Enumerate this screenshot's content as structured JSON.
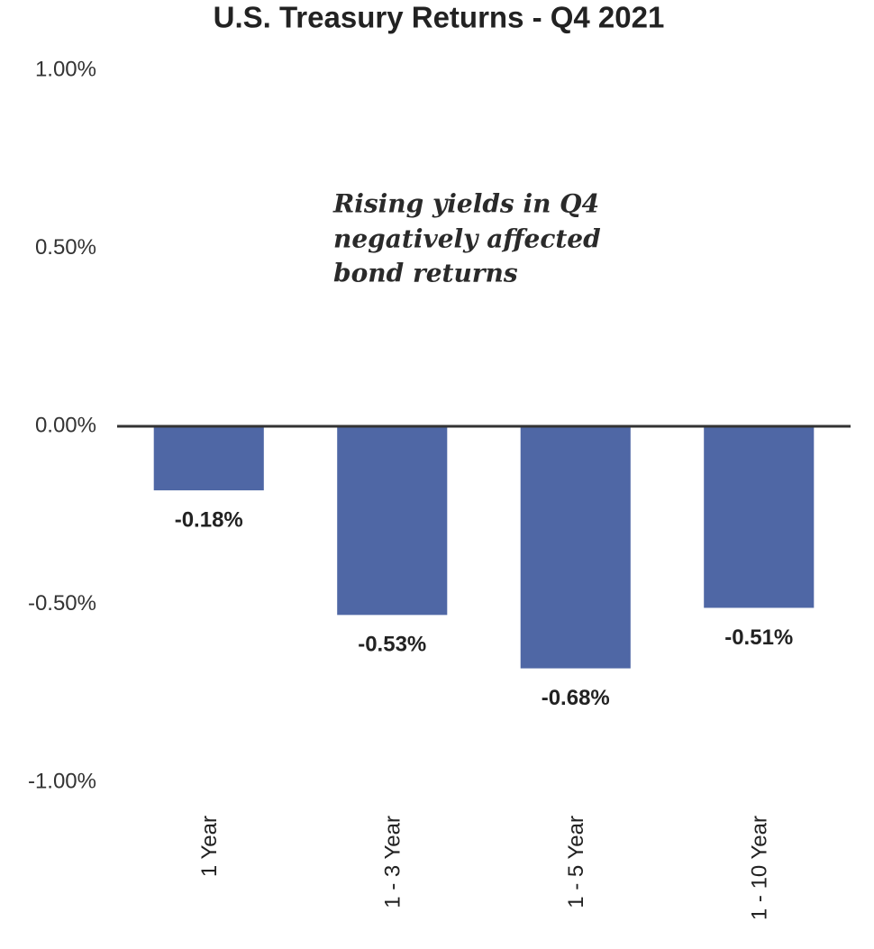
{
  "chart_data": {
    "type": "bar",
    "title": "U.S. Treasury Returns - Q4 2021",
    "annotation": [
      "Rising yields in Q4",
      "negatively affected",
      "bond returns"
    ],
    "categories": [
      "1 Year",
      "1 - 3 Year",
      "1 - 5 Year",
      "1 - 10 Year"
    ],
    "values": [
      -0.18,
      -0.53,
      -0.68,
      -0.51
    ],
    "value_labels": [
      "-0.18%",
      "-0.53%",
      "-0.68%",
      "-0.51%"
    ],
    "color": "#4f67a5",
    "ylim": [
      -1,
      1
    ],
    "yticks": [
      {
        "value": 1,
        "label": "1.00%"
      },
      {
        "value": 0.5,
        "label": "0.50%"
      },
      {
        "value": 0,
        "label": "0.00%"
      },
      {
        "value": -0.5,
        "label": "-0.50%"
      },
      {
        "value": -1,
        "label": "-1.00%"
      }
    ],
    "grid": false
  }
}
